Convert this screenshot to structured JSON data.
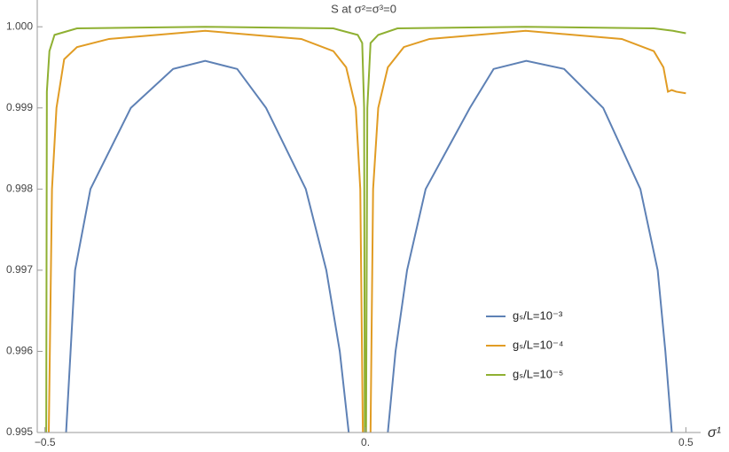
{
  "chart_data": {
    "type": "line",
    "title": "S at σ²=σ³=0",
    "x_label": "σ¹",
    "xlim": [
      -0.512,
      0.523
    ],
    "ylim": [
      0.995,
      1.00033
    ],
    "xticks": [
      {
        "value": -0.5,
        "label": "−0.5"
      },
      {
        "value": 0,
        "label": "0."
      },
      0.5
    ],
    "yticks": [
      0.995,
      0.996,
      0.997,
      0.998,
      0.999,
      {
        "value": 1,
        "label": "1.000"
      }
    ],
    "series": [
      {
        "name": "gₛ/L=10⁻³",
        "color": "#5e81b5",
        "x": [
          -0.467,
          -0.453,
          -0.429,
          -0.366,
          -0.3,
          -0.25,
          -0.2,
          -0.155,
          -0.093,
          -0.061,
          -0.04,
          -0.026,
          null,
          0.035,
          0.047,
          0.065,
          0.094,
          0.163,
          0.2,
          0.251,
          0.31,
          0.371,
          0.429,
          0.456,
          0.468,
          0.478
        ],
        "values": [
          0.995,
          0.997,
          0.998,
          0.999,
          0.99948,
          0.99958,
          0.99948,
          0.999,
          0.998,
          0.997,
          0.996,
          0.995,
          null,
          0.995,
          0.996,
          0.997,
          0.998,
          0.999,
          0.99948,
          0.99958,
          0.99948,
          0.999,
          0.998,
          0.997,
          0.996,
          0.995
        ]
      },
      {
        "name": "gₛ/L=10⁻⁴",
        "color": "#e19c24",
        "x": [
          -0.494,
          -0.489,
          -0.482,
          -0.47,
          -0.45,
          -0.4,
          -0.25,
          -0.1,
          -0.05,
          -0.03,
          -0.015,
          -0.008,
          -0.004,
          null,
          0.008,
          0.012,
          0.02,
          0.035,
          0.06,
          0.1,
          0.25,
          0.4,
          0.45,
          0.465,
          0.472,
          0.478,
          0.485,
          0.5
        ],
        "values": [
          0.995,
          0.998,
          0.999,
          0.9996,
          0.99975,
          0.99985,
          0.99995,
          0.99985,
          0.9997,
          0.9995,
          0.999,
          0.998,
          0.995,
          null,
          0.995,
          0.998,
          0.999,
          0.9995,
          0.99975,
          0.99985,
          0.99995,
          0.99985,
          0.9997,
          0.9995,
          0.9992,
          0.99922,
          0.9992,
          0.99918
        ]
      },
      {
        "name": "gₛ/L=10⁻⁵",
        "color": "#8fb032",
        "x": [
          -0.498,
          -0.497,
          -0.493,
          -0.485,
          -0.45,
          -0.25,
          -0.05,
          -0.012,
          -0.005,
          -0.002,
          -0.001,
          null,
          0.001,
          0.003,
          0.008,
          0.02,
          0.05,
          0.25,
          0.45,
          0.48,
          0.5
        ],
        "values": [
          0.995,
          0.9992,
          0.9997,
          0.9999,
          0.99998,
          1.0,
          0.99998,
          0.9999,
          0.9998,
          0.999,
          0.995,
          null,
          0.995,
          0.999,
          0.9998,
          0.9999,
          0.99998,
          1.0,
          0.99998,
          0.99995,
          0.99992
        ]
      }
    ]
  }
}
